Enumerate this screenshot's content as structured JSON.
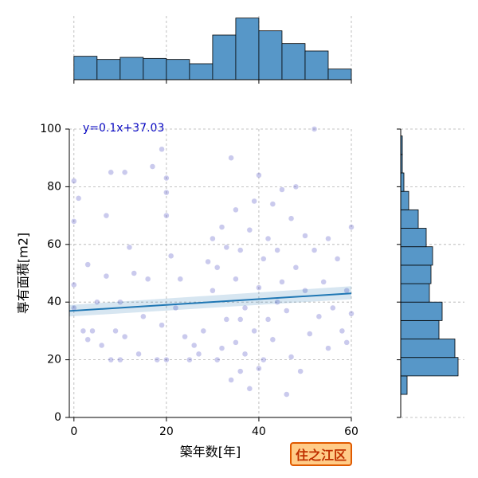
{
  "chart_data": [
    {
      "type": "scatter",
      "xlabel": "築年数[年]",
      "ylabel": "専有面積[m2]",
      "annotation": "y=0.1x+37.03",
      "badge": "住之江区",
      "x": [
        0,
        0,
        0,
        0,
        1,
        2,
        3,
        3,
        4,
        5,
        6,
        7,
        7,
        8,
        8,
        9,
        10,
        10,
        11,
        11,
        12,
        13,
        14,
        15,
        16,
        17,
        18,
        19,
        19,
        20,
        20,
        20,
        20,
        21,
        22,
        23,
        25,
        26,
        28,
        30,
        30,
        31,
        31,
        32,
        33,
        33,
        34,
        34,
        35,
        35,
        35,
        36,
        36,
        37,
        37,
        38,
        38,
        39,
        39,
        40,
        40,
        40,
        41,
        41,
        42,
        42,
        43,
        43,
        44,
        45,
        45,
        46,
        46,
        47,
        47,
        48,
        48,
        49,
        50,
        50,
        51,
        52,
        52,
        53,
        54,
        55,
        55,
        56,
        57,
        58,
        59,
        60,
        60,
        59,
        24,
        27,
        29,
        44,
        36,
        32
      ],
      "y": [
        82,
        68,
        46,
        38,
        76,
        30,
        53,
        27,
        30,
        40,
        25,
        70,
        49,
        20,
        85,
        30,
        20,
        40,
        85,
        28,
        59,
        50,
        22,
        35,
        48,
        87,
        20,
        93,
        32,
        83,
        78,
        70,
        20,
        56,
        38,
        48,
        20,
        25,
        30,
        62,
        44,
        52,
        20,
        66,
        34,
        59,
        90,
        13,
        72,
        26,
        48,
        58,
        16,
        38,
        22,
        65,
        10,
        75,
        30,
        84,
        45,
        17,
        55,
        20,
        62,
        34,
        74,
        27,
        58,
        79,
        47,
        8,
        37,
        69,
        21,
        80,
        52,
        16,
        44,
        63,
        29,
        58,
        100,
        35,
        47,
        62,
        24,
        38,
        55,
        30,
        26,
        66,
        36,
        44,
        28,
        22,
        54,
        40,
        34,
        24
      ],
      "color": "#2a2ab8",
      "xlim": [
        -1,
        60
      ],
      "ylim": [
        0,
        100
      ],
      "xticks": [
        0,
        20,
        40,
        60
      ],
      "yticks": [
        0,
        20,
        40,
        60,
        80,
        100
      ],
      "grid": true,
      "fit": {
        "x": [
          -1,
          60
        ],
        "y": [
          36.93,
          43.03
        ],
        "lower": [
          35.0,
          41.0
        ],
        "upper": [
          39.0,
          45.5
        ],
        "color": "#1f77b4"
      }
    },
    {
      "type": "histogram",
      "orientation": "vertical",
      "bins": [
        0,
        5,
        10,
        15,
        20,
        25,
        30,
        35,
        40,
        45,
        50,
        55,
        60
      ],
      "counts": [
        22,
        19,
        21,
        20,
        19,
        15,
        42,
        58,
        46,
        34,
        27,
        10
      ],
      "color": "#5797c8",
      "ylim": [
        0,
        60
      ]
    },
    {
      "type": "histogram",
      "orientation": "horizontal",
      "bins": [
        8,
        14.4,
        20.8,
        27.2,
        33.6,
        40,
        46.4,
        52.8,
        59.2,
        65.6,
        72,
        78.4,
        84.8,
        91.2,
        97.6
      ],
      "counts": [
        4,
        36,
        34,
        24,
        26,
        18,
        19,
        20,
        16,
        11,
        5,
        2,
        1,
        1
      ],
      "color": "#5797c8",
      "xlim": [
        0,
        40
      ]
    }
  ]
}
